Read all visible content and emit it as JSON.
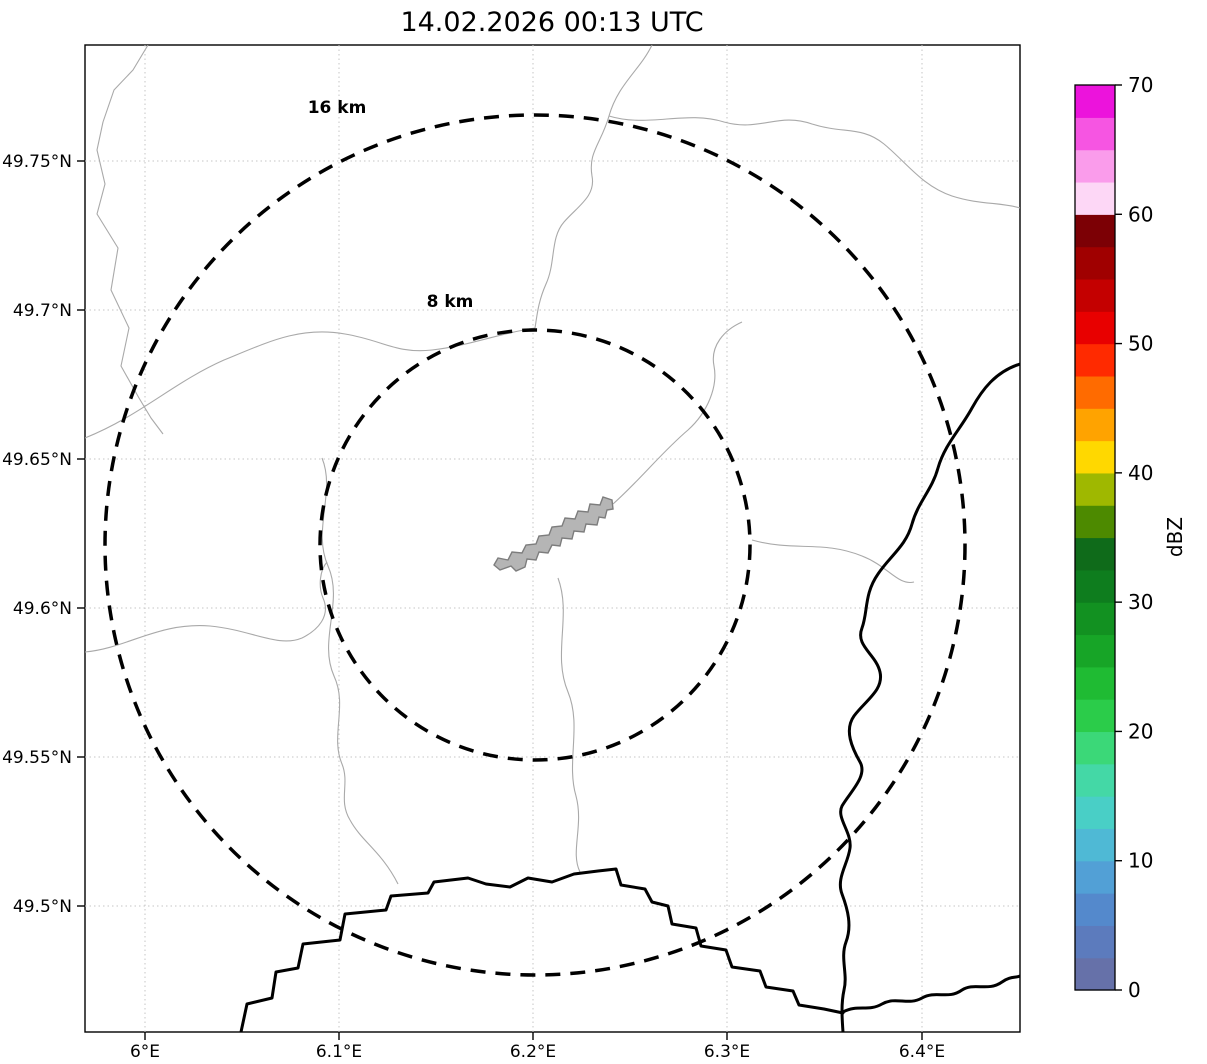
{
  "figure": {
    "title": "14.02.2026 00:13 UTC"
  },
  "map": {
    "range_rings": [
      {
        "label": "16 km"
      },
      {
        "label": "8 km"
      }
    ],
    "axes": {
      "x_tick_labels": [
        "6°E",
        "6.1°E",
        "6.2°E",
        "6.3°E",
        "6.4°E"
      ],
      "y_tick_labels": [
        "49.75°N",
        "49.7°N",
        "49.65°N",
        "49.6°N",
        "49.55°N",
        "49.5°N"
      ]
    },
    "feature_colors": {
      "urban_area_fill": "#b5b5b5",
      "admin_boundary": "#a9a9a9",
      "country_border": "#000000",
      "range_ring": "#000000"
    }
  },
  "colorbar": {
    "label": "dBZ",
    "min": 0,
    "max": 70,
    "tick_labels": [
      "0",
      "10",
      "20",
      "30",
      "40",
      "50",
      "60",
      "70"
    ],
    "colors_bottom_to_top": [
      "#6671a9",
      "#5c7bbd",
      "#5489cc",
      "#52a0d6",
      "#4fb9d5",
      "#49cfc6",
      "#44d8a6",
      "#3bd878",
      "#2bcc4a",
      "#1fbb33",
      "#17a527",
      "#129121",
      "#0e7d1e",
      "#0f6b1a",
      "#4d8a00",
      "#9fb800",
      "#ffd800",
      "#ffa300",
      "#ff6b00",
      "#ff2a00",
      "#e80000",
      "#c40000",
      "#a00000",
      "#7c0005",
      "#fdd7f6",
      "#fa9ceb",
      "#f655e2",
      "#ec13dc"
    ]
  }
}
